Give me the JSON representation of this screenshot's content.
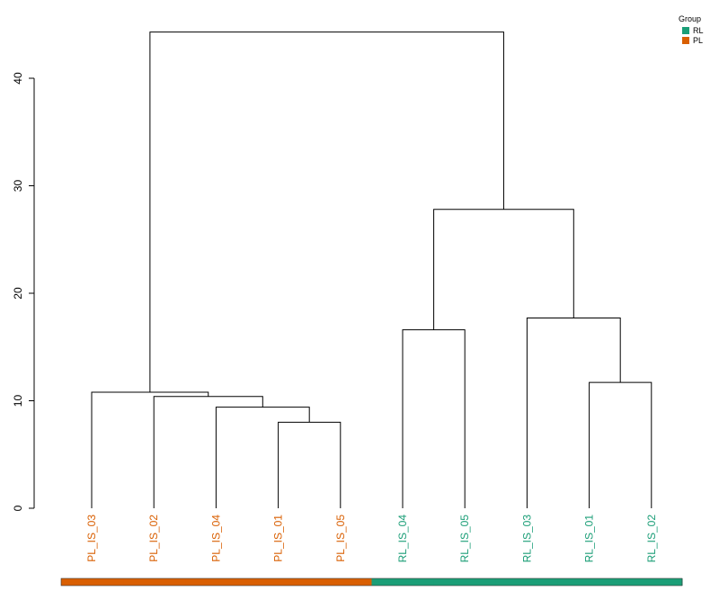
{
  "chart_data": {
    "type": "dendrogram",
    "title": "",
    "xlabel": "",
    "ylabel": "",
    "ylim": [
      0,
      44.3
    ],
    "yticks": [
      0,
      10,
      20,
      30,
      40
    ],
    "leaves": [
      {
        "label": "PL_IS_03",
        "group": "PL"
      },
      {
        "label": "PL_IS_02",
        "group": "PL"
      },
      {
        "label": "PL_IS_04",
        "group": "PL"
      },
      {
        "label": "PL_IS_01",
        "group": "PL"
      },
      {
        "label": "PL_IS_05",
        "group": "PL"
      },
      {
        "label": "RL_IS_04",
        "group": "RL"
      },
      {
        "label": "RL_IS_05",
        "group": "RL"
      },
      {
        "label": "RL_IS_03",
        "group": "RL"
      },
      {
        "label": "RL_IS_01",
        "group": "RL"
      },
      {
        "label": "RL_IS_02",
        "group": "RL"
      }
    ],
    "merges": [
      {
        "id": "n1",
        "left": "PL_IS_01",
        "right": "PL_IS_05",
        "height": 8.0
      },
      {
        "id": "n2",
        "left": "PL_IS_04",
        "right": "n1",
        "height": 9.4
      },
      {
        "id": "n3",
        "left": "PL_IS_02",
        "right": "n2",
        "height": 10.4
      },
      {
        "id": "n4",
        "left": "PL_IS_03",
        "right": "n3",
        "height": 10.8
      },
      {
        "id": "n5",
        "left": "RL_IS_01",
        "right": "RL_IS_02",
        "height": 11.7
      },
      {
        "id": "n6",
        "left": "RL_IS_04",
        "right": "RL_IS_05",
        "height": 16.6
      },
      {
        "id": "n7",
        "left": "RL_IS_03",
        "right": "n5",
        "height": 17.7
      },
      {
        "id": "n8",
        "left": "n6",
        "right": "n7",
        "height": 27.8
      },
      {
        "id": "n9",
        "left": "n4",
        "right": "n8",
        "height": 44.3
      }
    ],
    "legend": {
      "title": "Group",
      "position": "top-right",
      "items": [
        {
          "label": "RL",
          "color": "#1B9E77"
        },
        {
          "label": "PL",
          "color": "#D95F02"
        }
      ]
    },
    "group_colors": {
      "RL": "#1B9E77",
      "PL": "#D95F02"
    },
    "group_bar": "bottom"
  }
}
